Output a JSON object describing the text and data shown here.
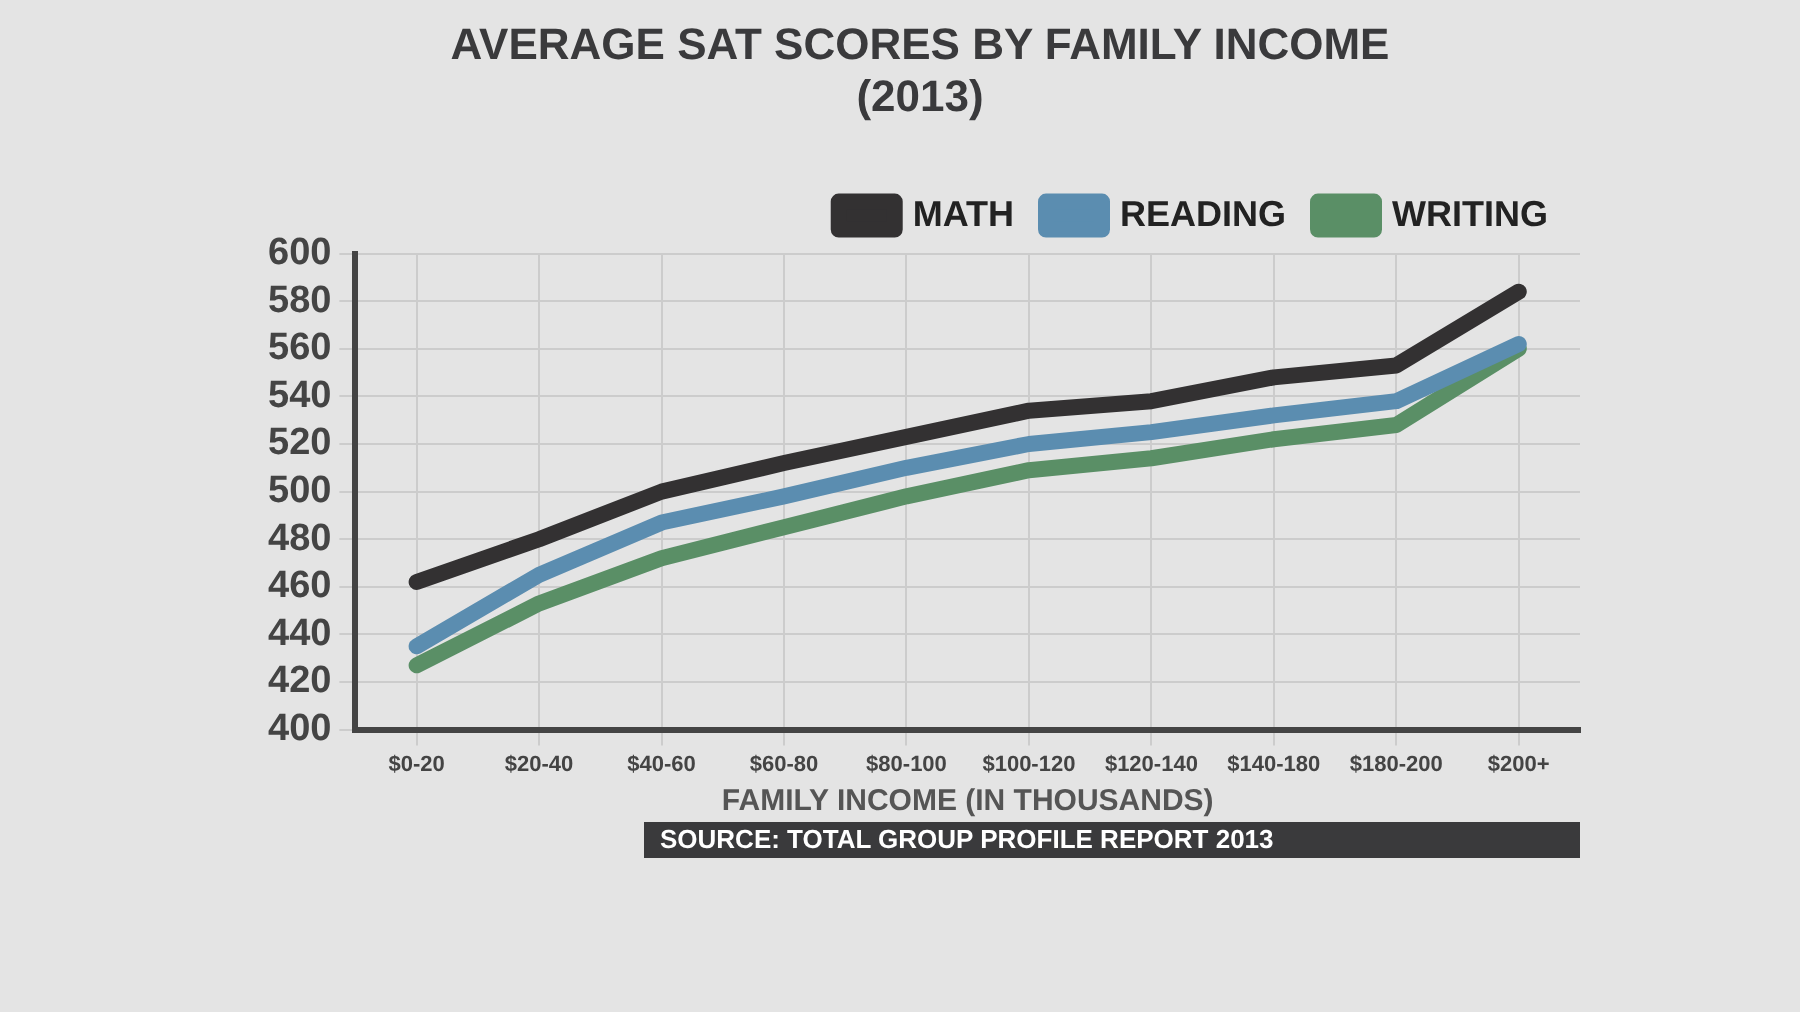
{
  "chart_data": {
    "type": "line",
    "title": [
      "AVERAGE SAT SCORES BY FAMILY INCOME",
      "(2013)"
    ],
    "xlabel": "FAMILY INCOME (IN THOUSANDS)",
    "categories": [
      "$0-20",
      "$20-40",
      "$40-60",
      "$60-80",
      "$80-100",
      "$100-120",
      "$120-140",
      "$140-180",
      "$180-200",
      "$200+"
    ],
    "series": [
      {
        "name": "MATH",
        "color": "#333132",
        "values": [
          462,
          480,
          500,
          512,
          523,
          534,
          538,
          548,
          553,
          584
        ]
      },
      {
        "name": "READING",
        "color": "#5b8db0",
        "values": [
          435,
          465,
          487,
          498,
          510,
          520,
          525,
          532,
          538,
          562
        ]
      },
      {
        "name": "WRITING",
        "color": "#5a8f66",
        "values": [
          427,
          453,
          472,
          485,
          498,
          509,
          514,
          522,
          528,
          560
        ]
      }
    ],
    "ylim": [
      400,
      600
    ],
    "yticks": [
      400,
      420,
      440,
      460,
      480,
      500,
      520,
      540,
      560,
      580,
      600
    ],
    "grid": true,
    "legend": "top right",
    "marker": "none",
    "line_style": "solid",
    "annotations": [
      "SOURCE: TOTAL GROUP PROFILE REPORT 2013"
    ]
  }
}
